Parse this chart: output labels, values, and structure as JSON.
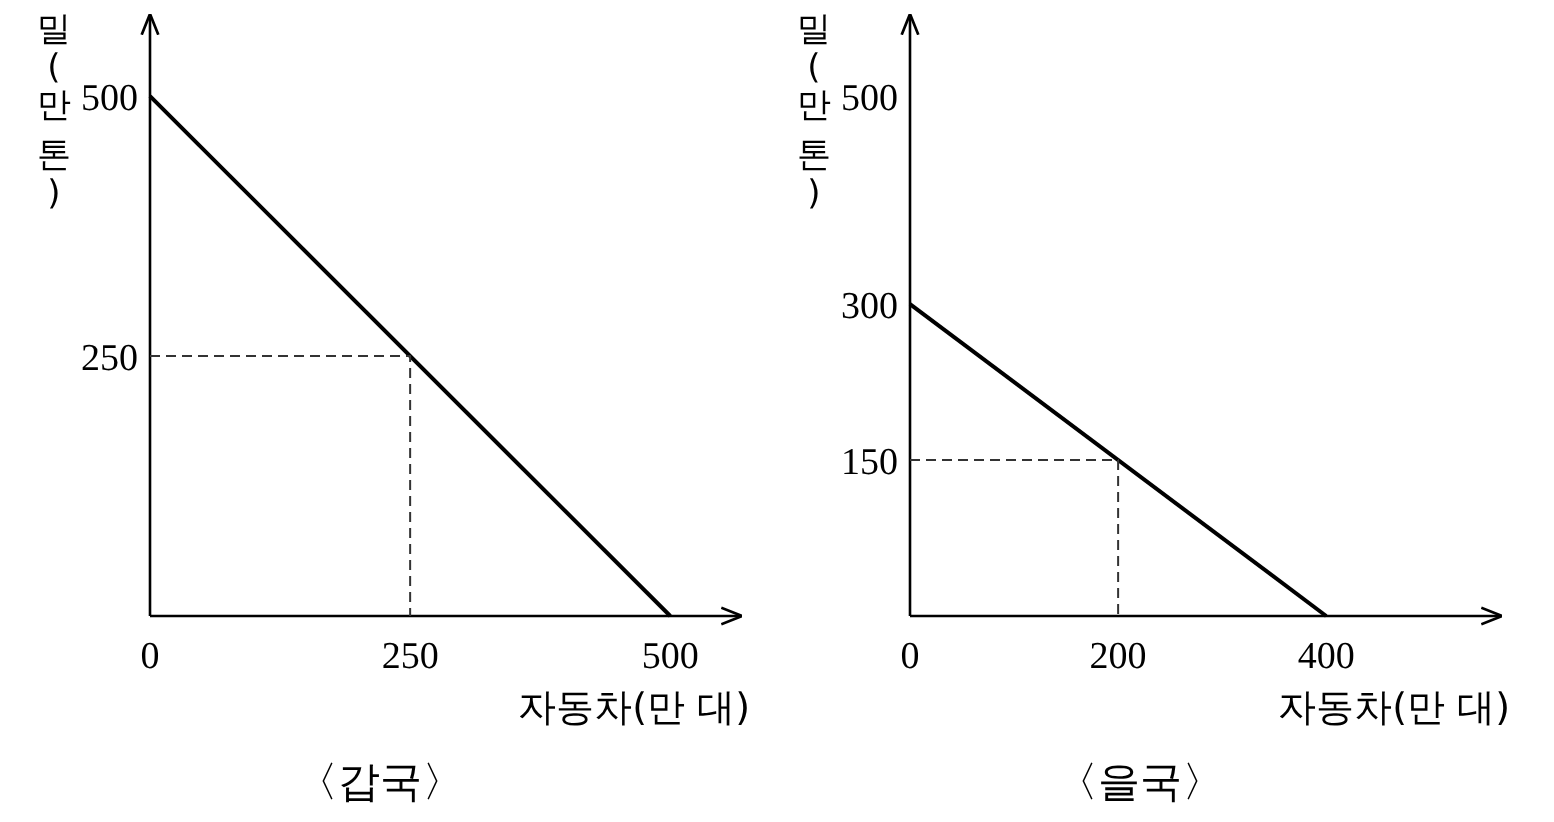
{
  "chart_data": [
    {
      "type": "line",
      "title": "〈갑국〉",
      "xlabel": "자동차(만 대)",
      "ylabel": "밀(만 톤)",
      "xlim": [
        0,
        567
      ],
      "ylim": [
        0,
        577
      ],
      "xticks": [
        0,
        250,
        500
      ],
      "yticks": [
        250,
        500
      ],
      "series": [
        {
          "color": "#000000",
          "x": [
            0,
            500
          ],
          "values": [
            500,
            0
          ],
          "line_style": "solid"
        },
        {
          "color": "#333333",
          "x": [
            0,
            250,
            250
          ],
          "values": [
            250,
            250,
            0
          ],
          "line_style": "dashed"
        }
      ]
    },
    {
      "type": "line",
      "title": "〈을국〉",
      "xlabel": "자동차(만 대)",
      "ylabel": "밀(만 톤)",
      "xlim": [
        0,
        567
      ],
      "ylim": [
        0,
        577
      ],
      "xticks": [
        0,
        200,
        400
      ],
      "yticks": [
        150,
        300,
        500
      ],
      "series": [
        {
          "color": "#000000",
          "x": [
            0,
            400
          ],
          "values": [
            300,
            0
          ],
          "line_style": "solid"
        },
        {
          "color": "#333333",
          "x": [
            0,
            200,
            200
          ],
          "values": [
            150,
            150,
            0
          ],
          "line_style": "dashed"
        }
      ]
    }
  ]
}
